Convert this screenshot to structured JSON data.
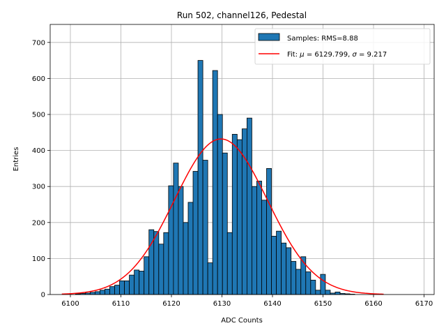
{
  "chart_data": {
    "type": "bar",
    "title": "Run 502, channel126, Pedestal",
    "xlabel": "ADC Counts",
    "ylabel": "Entries",
    "xlim": [
      6096,
      6172
    ],
    "ylim": [
      0,
      750
    ],
    "xticks": [
      6100,
      6110,
      6120,
      6130,
      6140,
      6150,
      6160,
      6170
    ],
    "yticks": [
      0,
      100,
      200,
      300,
      400,
      500,
      600,
      700
    ],
    "grid": true,
    "legend_position": "top-right",
    "histogram": {
      "name": "Samples: RMS=8.88",
      "color": "#1f77b4",
      "edge_color": "#000000",
      "bin_width": 0.97,
      "bin_start": 6101,
      "counts": [
        2,
        3,
        4,
        6,
        8,
        12,
        15,
        22,
        26,
        38,
        38,
        54,
        68,
        65,
        105,
        180,
        175,
        140,
        172,
        302,
        365,
        300,
        200,
        256,
        342,
        650,
        373,
        88,
        622,
        500,
        393,
        172,
        445,
        430,
        460,
        490,
        300,
        315,
        262,
        350,
        162,
        176,
        143,
        130,
        92,
        70,
        105,
        63,
        40,
        12,
        56,
        12,
        4,
        7,
        3,
        2,
        1,
        0,
        0
      ]
    },
    "fit": {
      "name": "Fit: μ = 6129.799, σ = 9.217",
      "legend_prefix": "Fit: ",
      "mu_symbol": "μ",
      "mu_text": " = 6129.799, ",
      "sigma_symbol": "σ",
      "sigma_text": " = 9.217",
      "color": "#ff0000",
      "mu": 6129.799,
      "sigma": 9.217,
      "amplitude": 432,
      "x_range": [
        6098.3,
        6162
      ]
    }
  }
}
